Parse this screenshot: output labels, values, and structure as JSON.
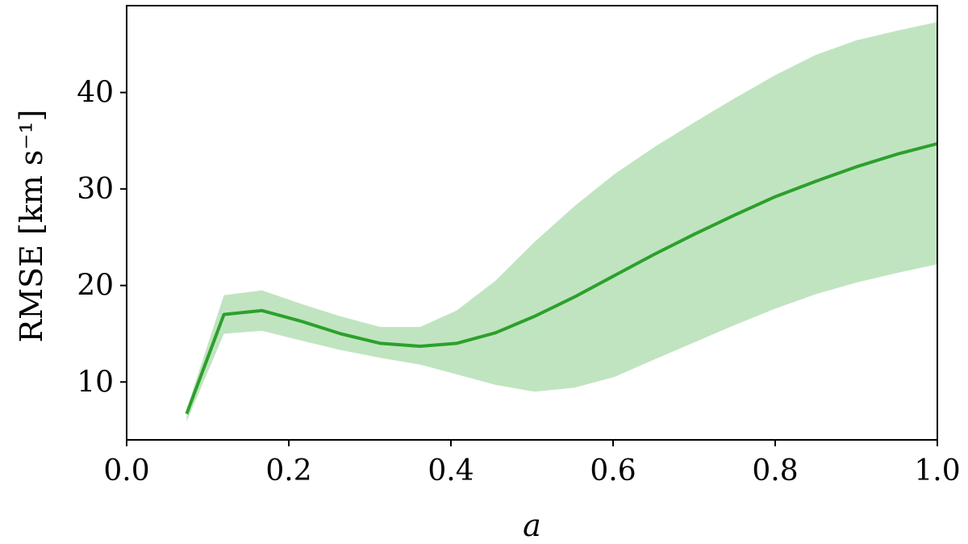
{
  "chart_data": {
    "type": "line",
    "xlabel": "a",
    "ylabel": "RMSE [km s⁻¹]",
    "xlim": [
      0.0,
      1.0
    ],
    "ylim": [
      4.0,
      49.0
    ],
    "xticks": [
      0.0,
      0.2,
      0.4,
      0.6,
      0.8,
      1.0
    ],
    "xtick_labels": [
      "0.0",
      "0.2",
      "0.4",
      "0.6",
      "0.8",
      "1.0"
    ],
    "yticks": [
      10,
      20,
      30,
      40
    ],
    "ytick_labels": [
      "10",
      "20",
      "30",
      "40"
    ],
    "grid": false,
    "colors": {
      "line": "#2ca02c",
      "band": "#c0e4c0"
    },
    "series": [
      {
        "x": [
          0.074,
          0.12,
          0.167,
          0.215,
          0.264,
          0.313,
          0.362,
          0.407,
          0.455,
          0.503,
          0.552,
          0.601,
          0.65,
          0.7,
          0.75,
          0.8,
          0.85,
          0.9,
          0.95,
          1.0
        ],
        "y": [
          6.7,
          17.0,
          17.4,
          16.3,
          15.0,
          14.0,
          13.7,
          14.0,
          15.1,
          16.8,
          18.8,
          21.0,
          23.2,
          25.3,
          27.3,
          29.2,
          30.8,
          32.3,
          33.6,
          34.7
        ],
        "band_upper": [
          7.2,
          19.0,
          19.5,
          18.1,
          16.8,
          15.7,
          15.7,
          17.4,
          20.5,
          24.5,
          28.2,
          31.5,
          34.3,
          36.9,
          39.4,
          41.8,
          43.9,
          45.4,
          46.4,
          47.3
        ],
        "band_lower": [
          5.9,
          15.0,
          15.3,
          14.3,
          13.3,
          12.5,
          11.8,
          10.8,
          9.7,
          9.0,
          9.4,
          10.5,
          12.3,
          14.1,
          15.9,
          17.6,
          19.1,
          20.3,
          21.3,
          22.2
        ]
      }
    ]
  }
}
